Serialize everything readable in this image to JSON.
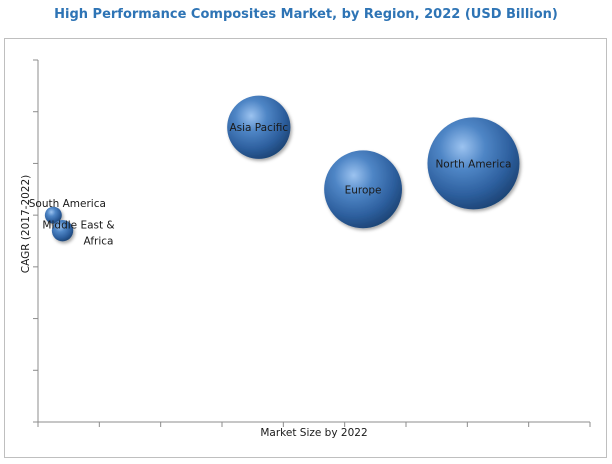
{
  "chart_data": {
    "type": "bubble",
    "title": "High Performance Composites Market, by Region, 2022 (USD Billion)",
    "xlabel": "Market Size  by 2022",
    "ylabel": "CAGR (2017-2022)",
    "xlim": [
      0,
      9
    ],
    "ylim": [
      0,
      7
    ],
    "grid": false,
    "legend": "none",
    "bubble_color": "#3d6fb0",
    "points": [
      {
        "label": "North America",
        "x": 7.1,
        "y": 5.0,
        "size": 7.4
      },
      {
        "label": "Europe",
        "x": 5.3,
        "y": 4.5,
        "size": 5.3
      },
      {
        "label": "Asia Pacific",
        "x": 3.6,
        "y": 5.7,
        "size": 3.5
      },
      {
        "label": "South America",
        "x": 0.25,
        "y": 4.0,
        "size": 0.25
      },
      {
        "label": "Middle East &\nAfrica",
        "x": 0.4,
        "y": 3.7,
        "size": 0.4
      }
    ]
  }
}
